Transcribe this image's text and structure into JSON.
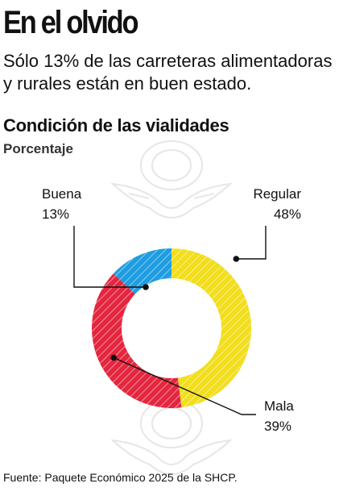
{
  "header": {
    "title": "En el olvido",
    "subtitle": "Sólo 13% de las carreteras alimentadoras y rurales están en buen estado."
  },
  "chart_data": {
    "type": "pie",
    "variant": "donut",
    "title": "Condición de las vialidades",
    "unit_label": "Porcentaje",
    "slices": [
      {
        "name": "Regular",
        "value": 48,
        "value_label": "48%",
        "color": "#F2DE1B"
      },
      {
        "name": "Mala",
        "value": 39,
        "value_label": "39%",
        "color": "#E5263F"
      },
      {
        "name": "Buena",
        "value": 13,
        "value_label": "13%",
        "color": "#1D9DE2"
      }
    ],
    "start": "top, clockwise",
    "pattern": "diagonal hatching",
    "legend": "none"
  },
  "source": "Fuente: Paquete Económico 2025 de la SHCP.",
  "watermark": {
    "icon": "eagle-seal-icon",
    "color": "#e8e8e8"
  }
}
